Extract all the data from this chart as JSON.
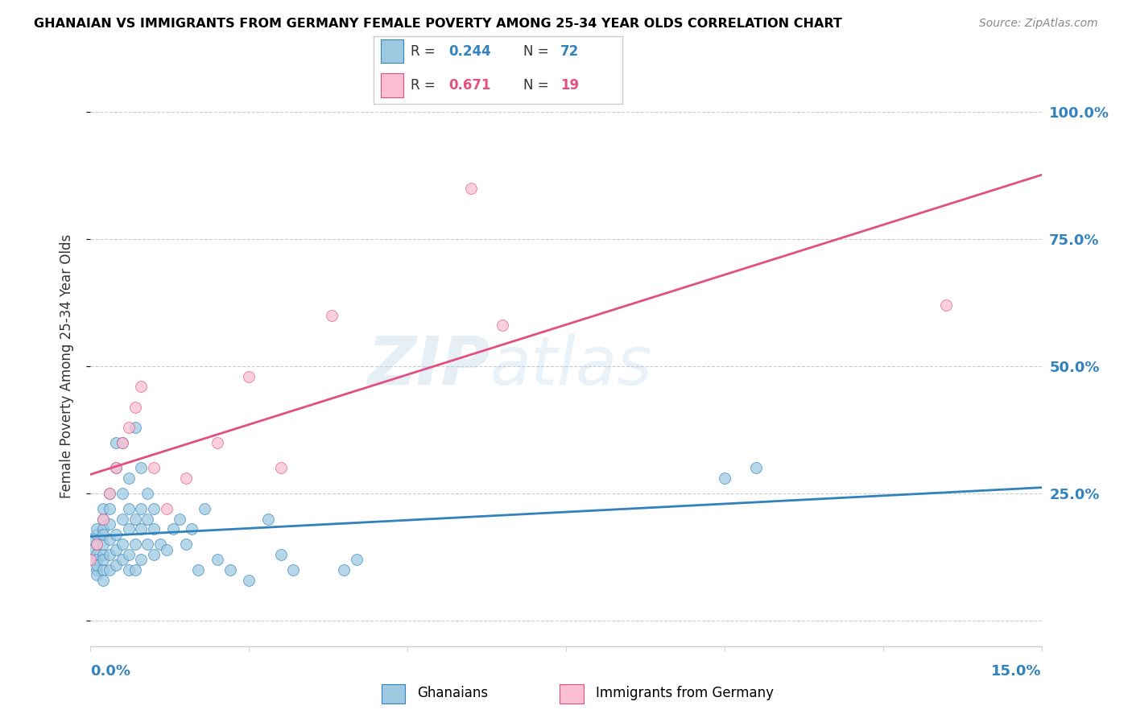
{
  "title": "GHANAIAN VS IMMIGRANTS FROM GERMANY FEMALE POVERTY AMONG 25-34 YEAR OLDS CORRELATION CHART",
  "source": "Source: ZipAtlas.com",
  "ylabel": "Female Poverty Among 25-34 Year Olds",
  "yticks": [
    0.0,
    0.25,
    0.5,
    0.75,
    1.0
  ],
  "ytick_labels": [
    "",
    "25.0%",
    "50.0%",
    "75.0%",
    "100.0%"
  ],
  "xlim": [
    0.0,
    0.15
  ],
  "ylim": [
    -0.05,
    1.05
  ],
  "color_blue": "#9ecae1",
  "color_pink": "#fcbfd2",
  "color_line_blue": "#3182bd",
  "color_line_pink": "#e05080",
  "watermark_zip": "ZIP",
  "watermark_atlas": "atlas",
  "ghanaian_x": [
    0.0,
    0.0,
    0.001,
    0.001,
    0.001,
    0.001,
    0.001,
    0.001,
    0.001,
    0.001,
    0.002,
    0.002,
    0.002,
    0.002,
    0.002,
    0.002,
    0.002,
    0.002,
    0.002,
    0.003,
    0.003,
    0.003,
    0.003,
    0.003,
    0.003,
    0.004,
    0.004,
    0.004,
    0.004,
    0.004,
    0.005,
    0.005,
    0.005,
    0.005,
    0.005,
    0.006,
    0.006,
    0.006,
    0.006,
    0.006,
    0.007,
    0.007,
    0.007,
    0.007,
    0.008,
    0.008,
    0.008,
    0.008,
    0.009,
    0.009,
    0.009,
    0.01,
    0.01,
    0.01,
    0.011,
    0.012,
    0.013,
    0.014,
    0.015,
    0.016,
    0.017,
    0.018,
    0.02,
    0.022,
    0.025,
    0.028,
    0.03,
    0.032,
    0.04,
    0.042,
    0.1,
    0.105
  ],
  "ghanaian_y": [
    0.14,
    0.16,
    0.1,
    0.13,
    0.15,
    0.17,
    0.12,
    0.09,
    0.11,
    0.18,
    0.1,
    0.13,
    0.15,
    0.18,
    0.2,
    0.22,
    0.12,
    0.17,
    0.08,
    0.1,
    0.13,
    0.16,
    0.19,
    0.22,
    0.25,
    0.11,
    0.14,
    0.17,
    0.3,
    0.35,
    0.12,
    0.15,
    0.2,
    0.25,
    0.35,
    0.1,
    0.13,
    0.18,
    0.22,
    0.28,
    0.1,
    0.15,
    0.2,
    0.38,
    0.12,
    0.18,
    0.22,
    0.3,
    0.15,
    0.2,
    0.25,
    0.13,
    0.18,
    0.22,
    0.15,
    0.14,
    0.18,
    0.2,
    0.15,
    0.18,
    0.1,
    0.22,
    0.12,
    0.1,
    0.08,
    0.2,
    0.13,
    0.1,
    0.1,
    0.12,
    0.28,
    0.3
  ],
  "german_x": [
    0.0,
    0.001,
    0.002,
    0.003,
    0.004,
    0.005,
    0.006,
    0.007,
    0.008,
    0.01,
    0.012,
    0.015,
    0.02,
    0.025,
    0.03,
    0.038,
    0.06,
    0.065,
    0.135
  ],
  "german_y": [
    0.12,
    0.15,
    0.2,
    0.25,
    0.3,
    0.35,
    0.38,
    0.42,
    0.46,
    0.3,
    0.22,
    0.28,
    0.35,
    0.48,
    0.3,
    0.6,
    0.85,
    0.58,
    0.62
  ]
}
